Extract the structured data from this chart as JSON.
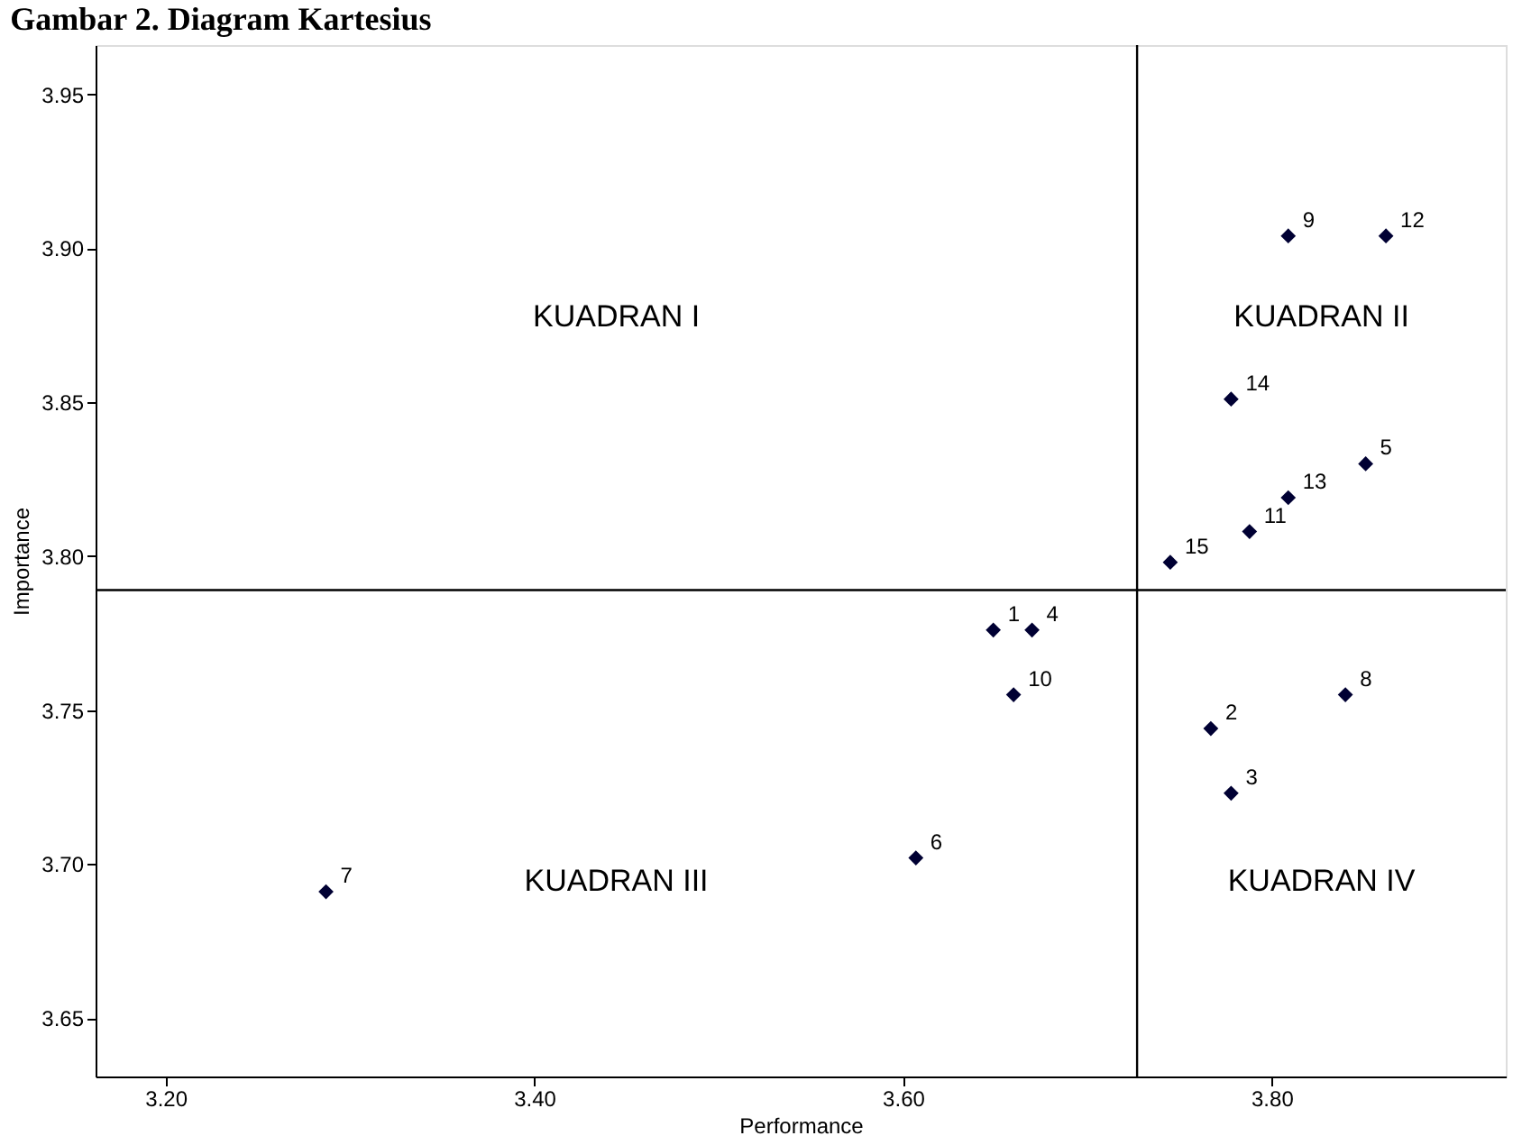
{
  "chart_data": {
    "type": "scatter",
    "title": "Gambar 2. Diagram Kartesius",
    "xlabel": "Performance",
    "ylabel": "Importance",
    "series": [
      {
        "name": "1",
        "x": [
          3.649
        ],
        "values": [
          3.776
        ]
      },
      {
        "name": "2",
        "x": [
          3.767
        ],
        "values": [
          3.744
        ]
      },
      {
        "name": "3",
        "x": [
          3.778
        ],
        "values": [
          3.723
        ]
      },
      {
        "name": "4",
        "x": [
          3.67
        ],
        "values": [
          3.776
        ]
      },
      {
        "name": "5",
        "x": [
          3.851
        ],
        "values": [
          3.83
        ]
      },
      {
        "name": "6",
        "x": [
          3.607
        ],
        "values": [
          3.702
        ]
      },
      {
        "name": "7",
        "x": [
          3.287
        ],
        "values": [
          3.691
        ]
      },
      {
        "name": "8",
        "x": [
          3.84
        ],
        "values": [
          3.755
        ]
      },
      {
        "name": "9",
        "x": [
          3.809
        ],
        "values": [
          3.904
        ]
      },
      {
        "name": "10",
        "x": [
          3.66
        ],
        "values": [
          3.755
        ]
      },
      {
        "name": "11",
        "x": [
          3.788
        ],
        "values": [
          3.808
        ]
      },
      {
        "name": "12",
        "x": [
          3.862
        ],
        "values": [
          3.904
        ]
      },
      {
        "name": "13",
        "x": [
          3.809
        ],
        "values": [
          3.819
        ]
      },
      {
        "name": "14",
        "x": [
          3.778
        ],
        "values": [
          3.851
        ]
      },
      {
        "name": "15",
        "x": [
          3.745
        ],
        "values": [
          3.798
        ]
      }
    ],
    "color": "#000033",
    "marker": "diamond",
    "grid": false,
    "xlim": [
      3.162,
      3.927
    ],
    "xticks": [
      {
        "value": 3.2,
        "label": "3.20"
      },
      {
        "value": 3.4,
        "label": "3.40"
      },
      {
        "value": 3.6,
        "label": "3.60"
      },
      {
        "value": 3.8,
        "label": "3.80"
      }
    ],
    "ylim": [
      3.631,
      3.966
    ],
    "yticks": [
      3.65,
      {
        "value": 3.7,
        "label": "3.70"
      },
      3.75,
      {
        "value": 3.8,
        "label": "3.80"
      },
      3.85,
      {
        "value": 3.9,
        "label": "3.90"
      },
      3.95
    ],
    "ref_lines": [
      {
        "axis": "x",
        "value": 3.727,
        "color": "#000000"
      },
      {
        "axis": "y",
        "value": 3.789,
        "color": "#000000"
      }
    ],
    "annotations": [
      "KUADRAN I",
      "KUADRAN II",
      "KUADRAN III",
      "KUADRAN IV"
    ]
  }
}
